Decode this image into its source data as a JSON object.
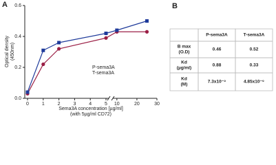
{
  "chart_data": {
    "type": "scatter",
    "panel_label": "A",
    "y_label": "Optical density",
    "y_label_2": "(450nm)",
    "x_label": "Sema3A concentration [µg/ml]",
    "x_label_2": "(with 5µg/ml CD72)",
    "ylim": [
      0,
      0.6
    ],
    "yticks": [
      {
        "value": 0,
        "label": "0.0"
      },
      {
        "value": 0.2,
        "label": "0.2"
      },
      {
        "value": 0.4,
        "label": "0.4"
      },
      {
        "value": 0.6,
        "label": "0.6"
      }
    ],
    "x_segments": [
      {
        "xlim": [
          0,
          5
        ],
        "xticks": [
          0,
          1,
          2,
          3,
          4,
          5
        ]
      },
      {
        "xlim": [
          8,
          30
        ],
        "xticks": [
          10,
          20,
          30
        ]
      }
    ],
    "x": [
      0,
      1,
      2,
      5,
      10,
      25
    ],
    "series": [
      {
        "name": "P-sema3A",
        "color": "#9b1f45",
        "marker": "circle",
        "values": [
          0.03,
          0.22,
          0.32,
          0.39,
          0.43,
          0.43
        ]
      },
      {
        "name": "T-sema3A",
        "color": "#1e3a9a",
        "marker": "square",
        "values": [
          0.04,
          0.31,
          0.36,
          0.42,
          0.44,
          0.5
        ]
      }
    ]
  },
  "table": {
    "panel_label": "B",
    "header": [
      "P-sema3A",
      "T-sema3A"
    ],
    "rows": [
      {
        "label": [
          "B max",
          "(O.D)"
        ],
        "cells": [
          "0.46",
          "0.52"
        ]
      },
      {
        "label": [
          "Kd",
          "(µg/ml)"
        ],
        "cells": [
          "0.88",
          "0.33"
        ]
      },
      {
        "label": [
          "Kd",
          "(M)"
        ],
        "cells": [
          "7.3x10⁻⁹",
          "4.85x10⁻⁹"
        ]
      }
    ]
  }
}
